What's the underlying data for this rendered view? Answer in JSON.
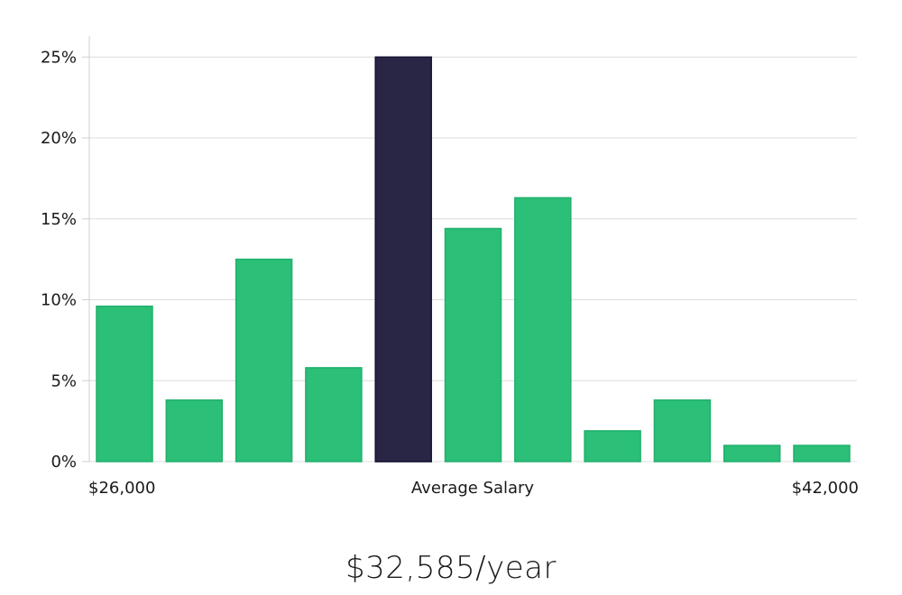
{
  "chart_data": {
    "type": "bar",
    "title": "",
    "xlabel": "",
    "ylabel": "",
    "ylim": [
      0,
      26.3
    ],
    "yticks": [
      0,
      5,
      10,
      15,
      20,
      25
    ],
    "ytick_labels": [
      "0%",
      "5%",
      "10%",
      "15%",
      "20%",
      "25%"
    ],
    "values": [
      9.6,
      3.8,
      12.5,
      5.8,
      25.0,
      14.4,
      16.3,
      1.9,
      3.8,
      1.0,
      1.0
    ],
    "highlight_index": 4,
    "colors": {
      "bar": "#2bbf78",
      "bar_stroke": "#22b06c",
      "highlight": "#282545",
      "highlight_stroke": "#141230"
    },
    "x_labels": {
      "left": "$26,000",
      "center": "Average Salary",
      "right": "$42,000"
    }
  },
  "summary": {
    "salary": "$32,585/year"
  }
}
